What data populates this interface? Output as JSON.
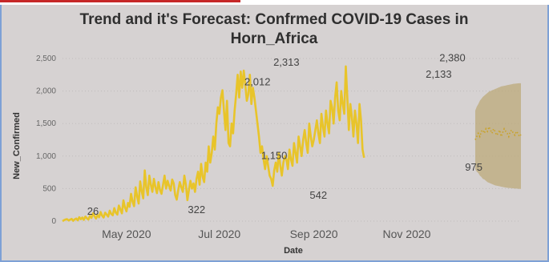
{
  "chart_data": {
    "type": "line",
    "title": "Trend and it's Forecast: Confrmed COVID-19 Cases in",
    "subtitle": "Horn_Africa",
    "xlabel": "Date",
    "ylabel": "New_Confirmed",
    "ylim": [
      0,
      2500
    ],
    "yticks": [
      "0",
      "500",
      "1,000",
      "1,500",
      "2,000",
      "2,500"
    ],
    "xticks": [
      "May 2020",
      "Jul 2020",
      "Sep 2020",
      "Nov 2020"
    ],
    "xtick_dates": [
      "2020-05-01",
      "2020-07-01",
      "2020-09-01",
      "2020-11-01"
    ],
    "grid": true,
    "colors": {
      "line": "#e8c42a",
      "forecast": "#c9a227",
      "band": "#bca979",
      "grid": "#c0bcbc"
    },
    "x_start": "2020-03-20",
    "forecast_start": "2020-12-16",
    "forecast_end": "2021-01-15",
    "series": [
      {
        "values": [
          0,
          15,
          26,
          30,
          10,
          22,
          35,
          5,
          28,
          40,
          12,
          60,
          30,
          55,
          20,
          70,
          45,
          25,
          80,
          50,
          120,
          75,
          40,
          95,
          60,
          140,
          85,
          55,
          130,
          100,
          70,
          160,
          110,
          90,
          200,
          130,
          100,
          240,
          180,
          120,
          320,
          210,
          150,
          280,
          220,
          420,
          300,
          230,
          520,
          380,
          270,
          610,
          460,
          350,
          780,
          520,
          400,
          700,
          560,
          450,
          650,
          520,
          430,
          600,
          480,
          420,
          560,
          700,
          500,
          620,
          540,
          470,
          640,
          580,
          400,
          330,
          480,
          600,
          520,
          450,
          700,
          560,
          322,
          480,
          620,
          500,
          580,
          450,
          650,
          760,
          560,
          880,
          680,
          600,
          900,
          760,
          1150,
          900,
          1050,
          1300,
          1100,
          1500,
          1750,
          1650,
          1900,
          2012,
          1700,
          1400,
          1850,
          1200,
          1150,
          1500,
          1350,
          1700,
          1950,
          2250,
          1900,
          2300,
          2050,
          2313,
          2100,
          1850,
          1950,
          2250,
          1800,
          2050,
          1900,
          1700,
          1500,
          1300,
          1050,
          1150,
          950,
          800,
          1000,
          850,
          700,
          650,
          542,
          780,
          900,
          760,
          1050,
          850,
          700,
          900,
          1000,
          950,
          800,
          1100,
          950,
          850,
          1200,
          1050,
          900,
          1300,
          1150,
          1000,
          1250,
          1400,
          1200,
          1050,
          1500,
          1300,
          1150,
          1250,
          1400,
          1550,
          1350,
          1200,
          1650,
          1450,
          1300,
          1700,
          1500,
          1350,
          1850,
          1750,
          1500,
          1900,
          2133,
          1700,
          1550,
          2000,
          1800,
          1650,
          2380,
          1900,
          1400,
          1800,
          1600,
          1300,
          1700,
          1500,
          1200,
          1800,
          1550,
          1100,
          975
        ]
      },
      {
        "name": "forecast",
        "values": [
          1250,
          1300,
          1350,
          1300,
          1380,
          1400,
          1350,
          1420,
          1380,
          1450,
          1400,
          1350,
          1420,
          1380,
          1320,
          1350,
          1400,
          1300,
          1360,
          1420,
          1380,
          1350,
          1300,
          1380,
          1400,
          1350,
          1320,
          1380,
          1350,
          1300,
          1330
        ],
        "lower": [
          800,
          760,
          740,
          700,
          680,
          650,
          640,
          620,
          600,
          590,
          580,
          570,
          560,
          550,
          545,
          540,
          535,
          530,
          525,
          520,
          515,
          512,
          510,
          508,
          506,
          504,
          502,
          500,
          498,
          496,
          495
        ],
        "upper": [
          1700,
          1760,
          1800,
          1850,
          1880,
          1910,
          1930,
          1950,
          1970,
          1990,
          2000,
          2010,
          2020,
          2030,
          2040,
          2050,
          2060,
          2070,
          2075,
          2080,
          2085,
          2090,
          2095,
          2100,
          2105,
          2110,
          2112,
          2115,
          2118,
          2120,
          2120
        ]
      }
    ],
    "data_labels": [
      {
        "text": "26",
        "date": "2020-04-09",
        "value": 26
      },
      {
        "text": "322",
        "date": "2020-06-16",
        "value": 322
      },
      {
        "text": "2,012",
        "date": "2020-07-26",
        "value": 2012
      },
      {
        "text": "1,150",
        "date": "2020-08-06",
        "value": 1150
      },
      {
        "text": "2,313",
        "date": "2020-08-14",
        "value": 2313
      },
      {
        "text": "542",
        "date": "2020-09-04",
        "value": 542
      },
      {
        "text": "2,133",
        "date": "2020-11-22",
        "value": 2133
      },
      {
        "text": "2,380",
        "date": "2020-12-01",
        "value": 2380
      },
      {
        "text": "975",
        "date": "2020-12-15",
        "value": 975
      }
    ]
  }
}
